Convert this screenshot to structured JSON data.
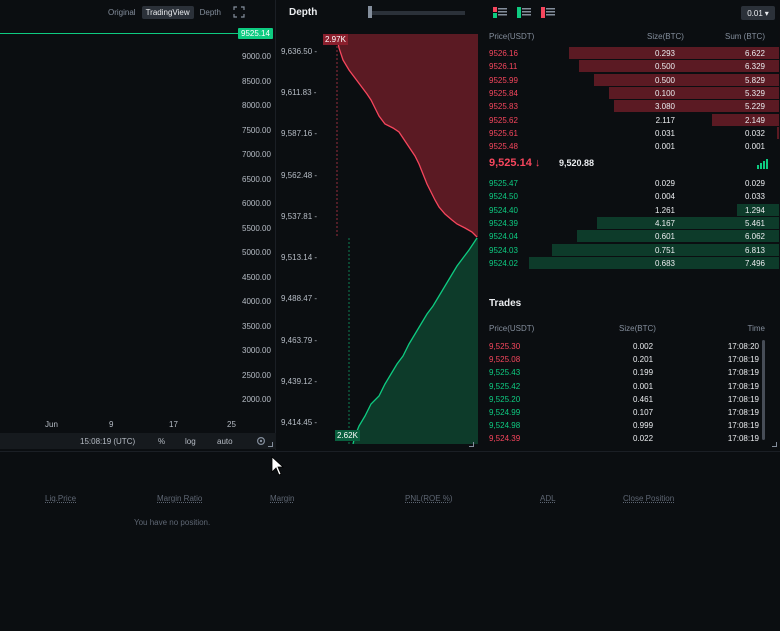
{
  "chart": {
    "tabs": [
      "Original",
      "TradingView",
      "Depth"
    ],
    "active_tab": "TradingView",
    "last_price_tag": "9525.14",
    "y_labels": [
      "9000.00",
      "8500.00",
      "8000.00",
      "7500.00",
      "7000.00",
      "6500.00",
      "6000.00",
      "5500.00",
      "5000.00",
      "4500.00",
      "4000.00",
      "3500.00",
      "3000.00",
      "2500.00",
      "2000.00"
    ],
    "x_labels": [
      "Jun",
      "9",
      "17",
      "25"
    ],
    "footer": {
      "time": "15:08:19 (UTC)",
      "percent": "%",
      "log": "log",
      "auto": "auto"
    }
  },
  "depth": {
    "title": "Depth",
    "y_labels": [
      "9,636.50 -",
      "9,611.83 -",
      "9,587.16 -",
      "9,562.48 -",
      "9,537.81 -",
      "9,513.14 -",
      "9,488.47 -",
      "9,463.79 -",
      "9,439.12 -",
      "9,414.45 -"
    ],
    "ask_volume_tag": "2.97K",
    "bid_volume_tag": "2.62K",
    "colors": {
      "ask": "#f6465d",
      "ask_fill": "#5b1a23",
      "bid": "#0ecb81",
      "bid_fill": "#0d3b2a"
    }
  },
  "orderbook": {
    "precision": "0.01",
    "headers": {
      "price": "Price(USDT)",
      "size": "Size(BTC)",
      "sum": "Sum (BTC)"
    },
    "asks": [
      {
        "price": "9526.16",
        "size": "0.293",
        "sum": "6.622",
        "depth": 0.84
      },
      {
        "price": "9526.11",
        "size": "0.500",
        "sum": "6.329",
        "depth": 0.8
      },
      {
        "price": "9525.99",
        "size": "0.500",
        "sum": "5.829",
        "depth": 0.74
      },
      {
        "price": "9525.84",
        "size": "0.100",
        "sum": "5.329",
        "depth": 0.68
      },
      {
        "price": "9525.83",
        "size": "3.080",
        "sum": "5.229",
        "depth": 0.66
      },
      {
        "price": "9525.62",
        "size": "2.117",
        "sum": "2.149",
        "depth": 0.27
      },
      {
        "price": "9525.61",
        "size": "0.031",
        "sum": "0.032",
        "depth": 0.01
      },
      {
        "price": "9525.48",
        "size": "0.001",
        "sum": "0.001",
        "depth": 0.0
      }
    ],
    "last_price": "9,525.14",
    "arrow": "↓",
    "mark_price": "9,520.88",
    "bids": [
      {
        "price": "9525.47",
        "size": "0.029",
        "sum": "0.029",
        "depth": 0.0
      },
      {
        "price": "9524.50",
        "size": "0.004",
        "sum": "0.033",
        "depth": 0.0
      },
      {
        "price": "9524.40",
        "size": "1.261",
        "sum": "1.294",
        "depth": 0.17
      },
      {
        "price": "9524.39",
        "size": "4.167",
        "sum": "5.461",
        "depth": 0.73
      },
      {
        "price": "9524.04",
        "size": "0.601",
        "sum": "6.062",
        "depth": 0.81
      },
      {
        "price": "9524.03",
        "size": "0.751",
        "sum": "6.813",
        "depth": 0.91
      },
      {
        "price": "9524.02",
        "size": "0.683",
        "sum": "7.496",
        "depth": 1.0
      }
    ]
  },
  "trades": {
    "title": "Trades",
    "headers": {
      "price": "Price(USDT)",
      "size": "Size(BTC)",
      "time": "Time"
    },
    "rows": [
      {
        "price": "9,525.30",
        "size": "0.002",
        "time": "17:08:20",
        "side": "sell"
      },
      {
        "price": "9,525.08",
        "size": "0.201",
        "time": "17:08:19",
        "side": "sell"
      },
      {
        "price": "9,525.43",
        "size": "0.199",
        "time": "17:08:19",
        "side": "buy"
      },
      {
        "price": "9,525.42",
        "size": "0.001",
        "time": "17:08:19",
        "side": "buy"
      },
      {
        "price": "9,525.20",
        "size": "0.461",
        "time": "17:08:19",
        "side": "buy"
      },
      {
        "price": "9,524.99",
        "size": "0.107",
        "time": "17:08:19",
        "side": "buy"
      },
      {
        "price": "9,524.98",
        "size": "0.999",
        "time": "17:08:19",
        "side": "buy"
      },
      {
        "price": "9,524.39",
        "size": "0.022",
        "time": "17:08:19",
        "side": "sell"
      }
    ]
  },
  "positions": {
    "headers": [
      "Liq.Price",
      "Margin Ratio",
      "Margin",
      "PNL(ROE %)",
      "ADL",
      "Close Position"
    ],
    "empty": "You have no position."
  }
}
